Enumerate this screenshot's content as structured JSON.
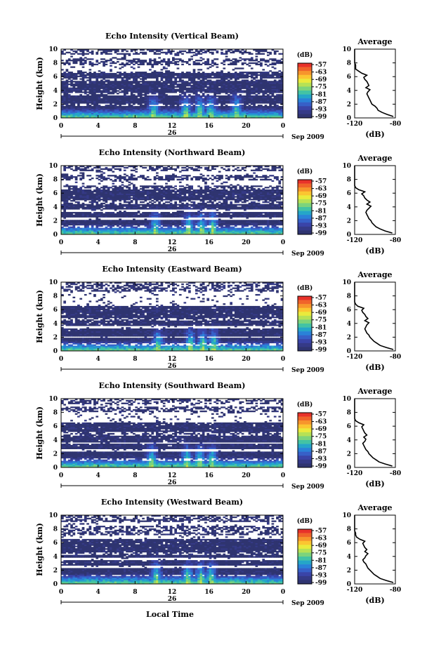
{
  "figure": {
    "xlabel": "Local Time"
  },
  "colorbar": {
    "unit": "(dB)",
    "levels": [
      "-57",
      "-63",
      "-69",
      "-75",
      "-81",
      "-87",
      "-93",
      "-99"
    ],
    "colors": [
      "#e8322a",
      "#f0642a",
      "#f7952c",
      "#fbc531",
      "#eaea3c",
      "#b6e155",
      "#7cd37c",
      "#43c3a4",
      "#25a6c8",
      "#2a82d8",
      "#3760c8",
      "#3a44a8",
      "#353a87",
      "#2f3470"
    ]
  },
  "chart_data": [
    {
      "type": "heatmap",
      "title": "Echo Intensity (Vertical Beam)",
      "xlabel": "",
      "ylabel": "Height (km)",
      "x_ticks": [
        "0",
        "4",
        "8",
        "12",
        "16",
        "20",
        "0"
      ],
      "xlim": [
        0,
        24
      ],
      "date_label": "26",
      "date_suffix": "Sep 2009",
      "y_ticks": [
        "0",
        "2",
        "4",
        "6",
        "8",
        "10"
      ],
      "ylim": [
        0,
        10
      ],
      "clevels_db": [
        -57,
        -63,
        -69,
        -75,
        -81,
        -87,
        -93,
        -99
      ],
      "gap_bands_km": [
        [
          6.8,
          7.7
        ],
        [
          8.6,
          9.2
        ]
      ],
      "gap_hole_bands_km": [
        [
          1.8,
          2.2
        ],
        [
          3.3,
          3.6
        ],
        [
          5.4,
          5.7
        ],
        [
          9.5,
          10
        ]
      ],
      "convective_peaks_h": [
        10,
        13.5,
        15,
        16.2,
        19
      ],
      "average": {
        "title": "Average",
        "xlabel": "(dB)",
        "x_ticks": [
          "-120",
          "-80"
        ],
        "xlim": [
          -120,
          -80
        ],
        "y_ticks": [
          "0",
          "2",
          "4",
          "6",
          "8",
          "10"
        ],
        "ylim": [
          0,
          10
        ],
        "height_km": [
          0.2,
          0.5,
          0.8,
          1.1,
          1.4,
          1.7,
          2.0,
          2.3,
          2.6,
          2.9,
          3.2,
          3.5,
          3.8,
          4.1,
          4.4,
          4.7,
          5.0,
          5.3,
          5.6,
          5.9,
          6.2,
          6.5,
          6.8,
          7.1,
          7.4,
          7.7,
          8.0,
          8.5,
          9.0,
          9.5,
          10.0
        ],
        "db": [
          -82,
          -88,
          -93,
          -97,
          -98,
          -100,
          -103,
          -104,
          -105,
          -106,
          -107,
          -108,
          -107,
          -105,
          -109,
          -106,
          -107,
          -108,
          -110,
          -111,
          -108,
          -113,
          -116,
          -119,
          -119,
          -119,
          -120,
          -120,
          -120,
          -120,
          -120
        ]
      }
    },
    {
      "type": "heatmap",
      "title": "Echo Intensity (Northward Beam)",
      "xlabel": "",
      "ylabel": "Height (km)",
      "x_ticks": [
        "0",
        "4",
        "8",
        "12",
        "16",
        "20",
        "0"
      ],
      "xlim": [
        0,
        24
      ],
      "date_label": "26",
      "date_suffix": "Sep 2009",
      "y_ticks": [
        "0",
        "2",
        "4",
        "6",
        "8",
        "10"
      ],
      "ylim": [
        0,
        10
      ],
      "clevels_db": [
        -57,
        -63,
        -69,
        -75,
        -81,
        -87,
        -93,
        -99
      ],
      "gap_bands_km": [
        [
          7.2,
          7.8
        ],
        [
          8.7,
          9.3
        ],
        [
          3.2,
          3.6
        ],
        [
          2.1,
          2.5
        ]
      ],
      "gap_hole_bands_km": [
        [
          1.0,
          1.4
        ],
        [
          4.5,
          5.0
        ],
        [
          9.5,
          10
        ]
      ],
      "convective_peaks_h": [
        10.2,
        13.8,
        15.2,
        16.4
      ],
      "average": {
        "title": "Average",
        "xlabel": "(dB)",
        "x_ticks": [
          "-120",
          "-80"
        ],
        "xlim": [
          -120,
          -80
        ],
        "y_ticks": [
          "0",
          "2",
          "4",
          "6",
          "8",
          "10"
        ],
        "ylim": [
          0,
          10
        ],
        "height_km": [
          0.2,
          0.5,
          0.8,
          1.1,
          1.4,
          1.7,
          2.0,
          2.3,
          2.6,
          2.9,
          3.2,
          3.5,
          3.8,
          4.1,
          4.4,
          4.7,
          5.0,
          5.3,
          5.6,
          5.9,
          6.2,
          6.5,
          6.8,
          7.1,
          7.4,
          7.7,
          8.0,
          8.5,
          9.0,
          9.5,
          10.0
        ],
        "db": [
          -83,
          -90,
          -95,
          -99,
          -101,
          -103,
          -104,
          -106,
          -107,
          -108,
          -109,
          -108,
          -106,
          -104,
          -108,
          -105,
          -108,
          -110,
          -111,
          -113,
          -110,
          -116,
          -119,
          -120,
          -120,
          -120,
          -120,
          -120,
          -120,
          -120,
          -120
        ]
      }
    },
    {
      "type": "heatmap",
      "title": "Echo Intensity (Eastward Beam)",
      "xlabel": "",
      "ylabel": "Height (km)",
      "x_ticks": [
        "0",
        "4",
        "8",
        "12",
        "16",
        "20",
        "0"
      ],
      "xlim": [
        0,
        24
      ],
      "date_label": "26",
      "date_suffix": "Sep 2009",
      "y_ticks": [
        "0",
        "2",
        "4",
        "6",
        "8",
        "10"
      ],
      "ylim": [
        0,
        10
      ],
      "clevels_db": [
        -57,
        -63,
        -69,
        -75,
        -81,
        -87,
        -93,
        -99
      ],
      "gap_bands_km": [
        [
          6.6,
          8.6
        ],
        [
          3.3,
          3.7
        ],
        [
          1.9,
          2.2
        ]
      ],
      "gap_hole_bands_km": [
        [
          0.7,
          1.1
        ],
        [
          4.4,
          4.9
        ],
        [
          8.8,
          10
        ]
      ],
      "convective_peaks_h": [
        10.5,
        14,
        15.3,
        16.5
      ],
      "average": {
        "title": "Average",
        "xlabel": "(dB)",
        "x_ticks": [
          "-120",
          "-80"
        ],
        "xlim": [
          -120,
          -80
        ],
        "y_ticks": [
          "0",
          "2",
          "4",
          "6",
          "8",
          "10"
        ],
        "ylim": [
          0,
          10
        ],
        "height_km": [
          0.2,
          0.5,
          0.8,
          1.1,
          1.4,
          1.7,
          2.0,
          2.3,
          2.6,
          2.9,
          3.2,
          3.5,
          3.8,
          4.1,
          4.4,
          4.7,
          5.0,
          5.3,
          5.6,
          5.9,
          6.2,
          6.5,
          6.8,
          7.1,
          7.4,
          7.7,
          8.0,
          8.5,
          9.0,
          9.5,
          10.0
        ],
        "db": [
          -82,
          -89,
          -95,
          -98,
          -101,
          -103,
          -105,
          -106,
          -108,
          -109,
          -110,
          -109,
          -108,
          -106,
          -110,
          -107,
          -109,
          -110,
          -112,
          -113,
          -111,
          -117,
          -119,
          -120,
          -120,
          -120,
          -120,
          -120,
          -120,
          -120,
          -120
        ]
      }
    },
    {
      "type": "heatmap",
      "title": "Echo Intensity (Southward Beam)",
      "xlabel": "",
      "ylabel": "Height (km)",
      "x_ticks": [
        "0",
        "4",
        "8",
        "12",
        "16",
        "20",
        "0"
      ],
      "xlim": [
        0,
        24
      ],
      "date_label": "26",
      "date_suffix": "Sep 2009",
      "y_ticks": [
        "0",
        "2",
        "4",
        "6",
        "8",
        "10"
      ],
      "ylim": [
        0,
        10
      ],
      "clevels_db": [
        -57,
        -63,
        -69,
        -75,
        -81,
        -87,
        -93,
        -99
      ],
      "gap_bands_km": [
        [
          6.6,
          8.0
        ],
        [
          8.8,
          9.2
        ],
        [
          3.4,
          3.7
        ],
        [
          2.4,
          2.7
        ]
      ],
      "gap_hole_bands_km": [
        [
          0.9,
          1.3
        ],
        [
          4.6,
          5.1
        ],
        [
          9.5,
          10
        ]
      ],
      "convective_peaks_h": [
        9.8,
        13.6,
        15,
        16.3
      ],
      "average": {
        "title": "Average",
        "xlabel": "(dB)",
        "x_ticks": [
          "-120",
          "-80"
        ],
        "xlim": [
          -120,
          -80
        ],
        "y_ticks": [
          "0",
          "2",
          "4",
          "6",
          "8",
          "10"
        ],
        "ylim": [
          0,
          10
        ],
        "height_km": [
          0.2,
          0.5,
          0.8,
          1.1,
          1.4,
          1.7,
          2.0,
          2.3,
          2.6,
          2.9,
          3.2,
          3.5,
          3.8,
          4.1,
          4.4,
          4.7,
          5.0,
          5.3,
          5.6,
          5.9,
          6.2,
          6.5,
          6.8,
          7.1,
          7.4,
          7.7,
          8.0,
          8.5,
          9.0,
          9.5,
          10.0
        ],
        "db": [
          -83,
          -90,
          -96,
          -99,
          -102,
          -104,
          -106,
          -107,
          -109,
          -110,
          -111,
          -112,
          -110,
          -109,
          -111,
          -108,
          -110,
          -111,
          -112,
          -113,
          -111,
          -116,
          -119,
          -120,
          -120,
          -120,
          -120,
          -120,
          -120,
          -120,
          -120
        ]
      }
    },
    {
      "type": "heatmap",
      "title": "Echo Intensity (Westward Beam)",
      "xlabel": "Local Time",
      "ylabel": "Height (km)",
      "x_ticks": [
        "0",
        "4",
        "8",
        "12",
        "16",
        "20",
        "0"
      ],
      "xlim": [
        0,
        24
      ],
      "date_label": "26",
      "date_suffix": "Sep 2009",
      "y_ticks": [
        "0",
        "2",
        "4",
        "6",
        "8",
        "10"
      ],
      "ylim": [
        0,
        10
      ],
      "clevels_db": [
        -57,
        -63,
        -69,
        -75,
        -81,
        -87,
        -93,
        -99
      ],
      "gap_bands_km": [
        [
          6.5,
          7.2
        ],
        [
          8.5,
          9.0
        ],
        [
          3.5,
          3.8
        ],
        [
          2.3,
          2.7
        ]
      ],
      "gap_hole_bands_km": [
        [
          1.1,
          1.4
        ],
        [
          4.3,
          4.7
        ],
        [
          9.5,
          10
        ]
      ],
      "convective_peaks_h": [
        10.3,
        13.7,
        15.1,
        16.2
      ],
      "average": {
        "title": "Average",
        "xlabel": "(dB)",
        "x_ticks": [
          "-120",
          "-80"
        ],
        "xlim": [
          -120,
          -80
        ],
        "y_ticks": [
          "0",
          "2",
          "4",
          "6",
          "8",
          "10"
        ],
        "ylim": [
          0,
          10
        ],
        "height_km": [
          0.2,
          0.5,
          0.8,
          1.1,
          1.4,
          1.7,
          2.0,
          2.3,
          2.6,
          2.9,
          3.2,
          3.5,
          3.8,
          4.1,
          4.4,
          4.7,
          5.0,
          5.3,
          5.6,
          5.9,
          6.2,
          6.5,
          6.8,
          7.1,
          7.4,
          7.7,
          8.0,
          8.5,
          9.0,
          9.5,
          10.0
        ],
        "db": [
          -82,
          -89,
          -95,
          -98,
          -101,
          -103,
          -105,
          -107,
          -108,
          -109,
          -111,
          -112,
          -110,
          -109,
          -107,
          -110,
          -108,
          -110,
          -111,
          -112,
          -110,
          -115,
          -118,
          -119,
          -119,
          -120,
          -120,
          -120,
          -120,
          -120,
          -120
        ]
      }
    }
  ]
}
